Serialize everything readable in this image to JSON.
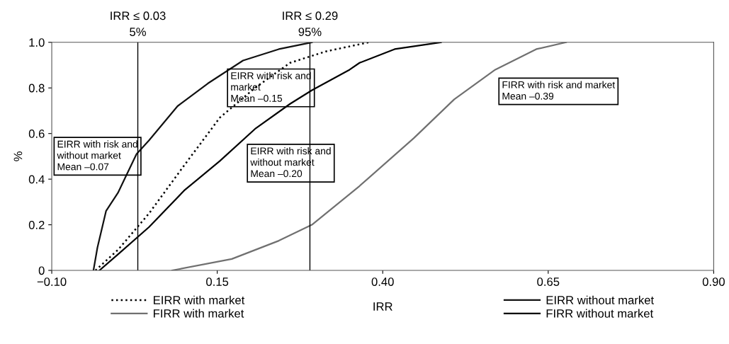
{
  "chart_data": {
    "type": "line",
    "xlabel": "IRR",
    "ylabel": "%",
    "xlim": [
      -0.1,
      0.9
    ],
    "xticks": [
      {
        "value": -0.1,
        "label": "−0.10"
      },
      0.15,
      {
        "value": 0.4,
        "label": "0.40"
      },
      0.65,
      {
        "value": 0.9,
        "label": "0.90"
      }
    ],
    "ylim": [
      0,
      1
    ],
    "yticks": [
      0,
      0.2,
      0.4,
      0.6,
      0.8,
      {
        "value": 1,
        "label": "1.0"
      }
    ],
    "grid": false,
    "legend": "bottom",
    "marker": "none",
    "series": [
      {
        "name": "EIRR with market",
        "color": "#000000",
        "line_style": "dotted",
        "x": [
          -0.034,
          0.0,
          0.047,
          0.1,
          0.154,
          0.207,
          0.26,
          0.314,
          0.379
        ],
        "values": [
          0,
          0.09,
          0.25,
          0.46,
          0.67,
          0.8,
          0.91,
          0.96,
          1.0
        ]
      },
      {
        "name": "FIRR with market",
        "color": "#707070",
        "line_style": "solid",
        "x": [
          0.082,
          0.172,
          0.243,
          0.293,
          0.365,
          0.447,
          0.508,
          0.57,
          0.632,
          0.677
        ],
        "values": [
          0,
          0.05,
          0.13,
          0.2,
          0.37,
          0.58,
          0.75,
          0.88,
          0.97,
          1.0
        ]
      },
      {
        "name": "EIRR without market",
        "color": "#111111",
        "line_style": "solid",
        "x": [
          -0.037,
          -0.031,
          -0.018,
          0.0,
          0.028,
          0.047,
          0.09,
          0.136,
          0.189,
          0.243,
          0.293
        ],
        "values": [
          0,
          0.1,
          0.26,
          0.34,
          0.51,
          0.57,
          0.72,
          0.82,
          0.92,
          0.97,
          1.0
        ]
      },
      {
        "name": "FIRR without market",
        "color": "#000000",
        "line_style": "solid",
        "x": [
          -0.028,
          0.0,
          0.047,
          0.1,
          0.154,
          0.207,
          0.26,
          0.293,
          0.35,
          0.365,
          0.418,
          0.488
        ],
        "values": [
          0,
          0.07,
          0.19,
          0.35,
          0.48,
          0.62,
          0.73,
          0.79,
          0.88,
          0.91,
          0.97,
          1.0
        ]
      }
    ],
    "ref_lines": [
      {
        "axis": "x",
        "value": 0.03,
        "label": "IRR ≤ 0.03\n5%",
        "color": "#000000"
      },
      {
        "axis": "x",
        "value": 0.29,
        "label": "IRR ≤ 0.29\n95%",
        "color": "#000000"
      }
    ],
    "annotations": [
      "EIRR with risk and\nwithout market\nMean –0.07",
      "EIRR with risk and\nmarket\nMean –0.15",
      "EIRR with risk and\nwithout market\nMean –0.20",
      "FIRR with risk and market\nMean –0.39"
    ]
  }
}
